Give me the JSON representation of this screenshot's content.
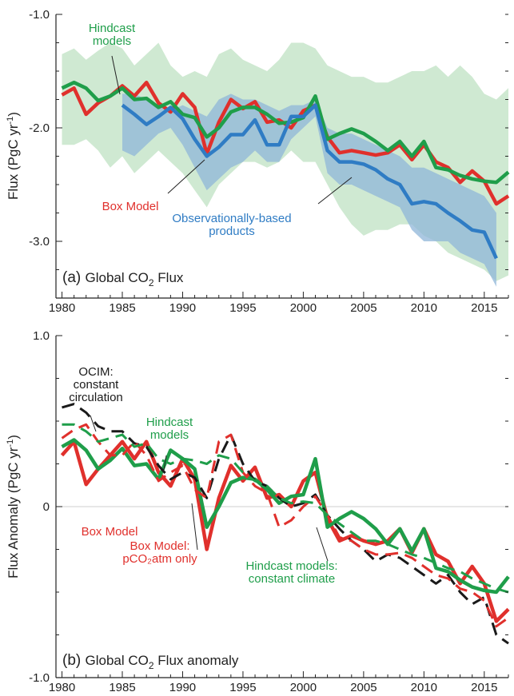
{
  "colors": {
    "red": "#e0302c",
    "green": "#1f9e4a",
    "blue": "#2f7cc4",
    "black": "#1a1a1a",
    "green_band": "#cfe9d2",
    "blue_band": "#8fb6d8",
    "annotation_green": "#1f9e4a",
    "annotation_red": "#e0302c",
    "annotation_blue": "#2f7cc4"
  },
  "chart_data": [
    {
      "type": "line",
      "panel_label": "(a)",
      "title": "Global CO₂ Flux",
      "title_parts": {
        "pre": "Global CO",
        "sub": "2",
        "post": " Flux"
      },
      "ylabel": "Flux (PgC yr⁻¹)",
      "ylabel_parts": {
        "pre": "Flux (PgC yr",
        "sup": "-1",
        "post": ")"
      },
      "xlim": [
        1979.5,
        2017
      ],
      "ylim": [
        -1.0,
        -3.5
      ],
      "x_ticks": [
        1980,
        1985,
        1990,
        1995,
        2000,
        2005,
        2010,
        2015
      ],
      "y_ticks": [
        -1.0,
        -2.0,
        -3.0
      ],
      "y_tick_labels": [
        "-1.0",
        "-2.0",
        "-3.0"
      ],
      "grid": false,
      "annotations": [
        {
          "id": "hindcast",
          "lines": [
            "Hindcast",
            "models"
          ],
          "color": "green"
        },
        {
          "id": "boxmodel",
          "lines": [
            "Box Model"
          ],
          "color": "red"
        },
        {
          "id": "obs",
          "lines": [
            "Observationally-based",
            "products"
          ],
          "color": "blue"
        }
      ],
      "bands": [
        {
          "name": "Hindcast models range",
          "color": "green_band",
          "x": [
            1980,
            1981,
            1982,
            1983,
            1984,
            1985,
            1986,
            1987,
            1988,
            1989,
            1990,
            1991,
            1992,
            1993,
            1994,
            1995,
            1996,
            1997,
            1998,
            1999,
            2000,
            2001,
            2002,
            2003,
            2004,
            2005,
            2006,
            2007,
            2008,
            2009,
            2010,
            2011,
            2012,
            2013,
            2014,
            2015,
            2016,
            2017
          ],
          "upper": [
            -1.35,
            -1.3,
            -1.4,
            -1.32,
            -1.25,
            -1.3,
            -1.45,
            -1.35,
            -1.25,
            -1.45,
            -1.55,
            -1.5,
            -1.55,
            -1.35,
            -1.3,
            -1.4,
            -1.45,
            -1.5,
            -1.4,
            -1.25,
            -1.25,
            -1.3,
            -1.45,
            -1.5,
            -1.55,
            -1.55,
            -1.6,
            -1.6,
            -1.55,
            -1.5,
            -1.5,
            -1.45,
            -1.55,
            -1.45,
            -1.55,
            -1.7,
            -1.75,
            -1.65
          ],
          "lower": [
            -2.15,
            -2.15,
            -2.1,
            -2.2,
            -2.35,
            -2.25,
            -2.4,
            -2.3,
            -2.2,
            -2.3,
            -2.4,
            -2.55,
            -2.7,
            -2.5,
            -2.4,
            -2.3,
            -2.3,
            -2.35,
            -2.3,
            -2.2,
            -2.3,
            -2.3,
            -2.5,
            -2.7,
            -2.85,
            -2.95,
            -2.9,
            -2.9,
            -2.85,
            -2.85,
            -2.95,
            -3.0,
            -3.1,
            -3.15,
            -3.2,
            -3.25,
            -3.35,
            -3.3
          ]
        },
        {
          "name": "Observationally-based products range",
          "color": "blue_band",
          "x": [
            1985,
            1986,
            1987,
            1988,
            1989,
            1990,
            1991,
            1992,
            1993,
            1994,
            1995,
            1996,
            1997,
            1998,
            1999,
            2000,
            2001,
            2002,
            2003,
            2004,
            2005,
            2006,
            2007,
            2008,
            2009,
            2010,
            2011,
            2012,
            2013,
            2014,
            2015,
            2016
          ],
          "upper": [
            -1.7,
            -1.7,
            -1.75,
            -1.8,
            -1.85,
            -1.8,
            -1.85,
            -1.9,
            -1.75,
            -1.7,
            -1.75,
            -1.75,
            -1.8,
            -1.85,
            -1.8,
            -1.8,
            -1.75,
            -2.0,
            -2.05,
            -2.05,
            -2.1,
            -2.15,
            -2.2,
            -2.25,
            -2.35,
            -2.35,
            -2.4,
            -2.45,
            -2.5,
            -2.55,
            -2.6,
            -2.75
          ],
          "lower": [
            -2.2,
            -2.25,
            -2.15,
            -2.05,
            -2.0,
            -2.15,
            -2.35,
            -2.55,
            -2.45,
            -2.35,
            -2.3,
            -2.2,
            -2.3,
            -2.3,
            -2.1,
            -2.0,
            -1.9,
            -2.4,
            -2.5,
            -2.5,
            -2.55,
            -2.6,
            -2.65,
            -2.7,
            -2.9,
            -3.0,
            -3.0,
            -3.0,
            -3.1,
            -3.15,
            -3.2,
            -3.4
          ]
        }
      ],
      "series": [
        {
          "name": "Box Model",
          "color": "red",
          "dash": false,
          "x": [
            1980,
            1981,
            1982,
            1983,
            1984,
            1985,
            1986,
            1987,
            1988,
            1989,
            1990,
            1991,
            1992,
            1993,
            1994,
            1995,
            1996,
            1997,
            1998,
            1999,
            2000,
            2001,
            2002,
            2003,
            2004,
            2005,
            2006,
            2007,
            2008,
            2009,
            2010,
            2011,
            2012,
            2013,
            2014,
            2015,
            2016,
            2017
          ],
          "values": [
            -1.71,
            -1.65,
            -1.88,
            -1.78,
            -1.72,
            -1.63,
            -1.72,
            -1.6,
            -1.78,
            -1.86,
            -1.7,
            -1.82,
            -2.23,
            -1.95,
            -1.75,
            -1.83,
            -1.77,
            -1.95,
            -1.93,
            -2.0,
            -1.85,
            -1.8,
            -2.08,
            -2.22,
            -2.2,
            -2.22,
            -2.24,
            -2.22,
            -2.15,
            -2.28,
            -2.15,
            -2.3,
            -2.35,
            -2.48,
            -2.38,
            -2.47,
            -2.67,
            -2.6
          ]
        },
        {
          "name": "Hindcast models",
          "color": "green",
          "dash": false,
          "x": [
            1980,
            1981,
            1982,
            1983,
            1984,
            1985,
            1986,
            1987,
            1988,
            1989,
            1990,
            1991,
            1992,
            1993,
            1994,
            1995,
            1996,
            1997,
            1998,
            1999,
            2000,
            2001,
            2002,
            2003,
            2004,
            2005,
            2006,
            2007,
            2008,
            2009,
            2010,
            2011,
            2012,
            2013,
            2014,
            2015,
            2016,
            2017
          ],
          "values": [
            -1.65,
            -1.6,
            -1.65,
            -1.76,
            -1.72,
            -1.65,
            -1.75,
            -1.74,
            -1.82,
            -1.77,
            -1.88,
            -1.91,
            -2.08,
            -2.0,
            -1.86,
            -1.82,
            -1.82,
            -1.88,
            -1.96,
            -1.95,
            -1.91,
            -1.72,
            -2.1,
            -2.05,
            -2.01,
            -2.05,
            -2.12,
            -2.2,
            -2.12,
            -2.25,
            -2.12,
            -2.35,
            -2.37,
            -2.42,
            -2.45,
            -2.47,
            -2.48,
            -2.39
          ]
        },
        {
          "name": "Observationally-based products",
          "color": "blue",
          "dash": false,
          "x": [
            1985,
            1986,
            1987,
            1988,
            1989,
            1990,
            1991,
            1992,
            1993,
            1994,
            1995,
            1996,
            1997,
            1998,
            1999,
            2000,
            2001,
            2002,
            2003,
            2004,
            2005,
            2006,
            2007,
            2008,
            2009,
            2010,
            2011,
            2012,
            2013,
            2014,
            2015,
            2016
          ],
          "values": [
            -1.8,
            -1.88,
            -1.97,
            -1.9,
            -1.82,
            -1.92,
            -2.1,
            -2.25,
            -2.17,
            -2.06,
            -2.06,
            -1.93,
            -2.15,
            -2.15,
            -1.9,
            -1.9,
            -1.8,
            -2.2,
            -2.3,
            -2.3,
            -2.32,
            -2.37,
            -2.45,
            -2.5,
            -2.67,
            -2.65,
            -2.67,
            -2.75,
            -2.82,
            -2.9,
            -2.92,
            -3.15
          ]
        }
      ]
    },
    {
      "type": "line",
      "panel_label": "(b)",
      "title": "Global CO₂ Flux anomaly",
      "title_parts": {
        "pre": "Global CO",
        "sub": "2",
        "post": " Flux anomaly"
      },
      "ylabel": "Flux Anomaly (PgC yr⁻¹)",
      "ylabel_parts": {
        "pre": "Flux Anomaly (PgC yr",
        "sup": "-1",
        "post": ")"
      },
      "xlim": [
        1979.5,
        2017
      ],
      "ylim": [
        1.0,
        -1.0
      ],
      "x_ticks": [
        1980,
        1985,
        1990,
        1995,
        2000,
        2005,
        2010,
        2015
      ],
      "y_ticks": [
        1.0,
        0,
        -1.0
      ],
      "y_tick_labels": [
        "1.0",
        "0",
        "-1.0"
      ],
      "grid": false,
      "zero_line": true,
      "annotations": [
        {
          "id": "ocim",
          "lines": [
            "OCIM:",
            "constant",
            "circulation"
          ],
          "color": "black"
        },
        {
          "id": "hindcast",
          "lines": [
            "Hindcast",
            "models"
          ],
          "color": "green"
        },
        {
          "id": "boxmodel",
          "lines": [
            "Box Model"
          ],
          "color": "red"
        },
        {
          "id": "boxpco2",
          "lines": [
            "Box Model:",
            "pCO₂atm only"
          ],
          "color": "red"
        },
        {
          "id": "hindconst",
          "lines": [
            "Hindcast models:",
            "constant climate"
          ],
          "color": "green"
        }
      ],
      "series": [
        {
          "name": "Box Model",
          "color": "red",
          "dash": false,
          "x": [
            1980,
            1981,
            1982,
            1983,
            1984,
            1985,
            1986,
            1987,
            1988,
            1989,
            1990,
            1991,
            1992,
            1993,
            1994,
            1995,
            1996,
            1997,
            1998,
            1999,
            2000,
            2001,
            2002,
            2003,
            2004,
            2005,
            2006,
            2007,
            2008,
            2009,
            2010,
            2011,
            2012,
            2013,
            2014,
            2015,
            2016,
            2017
          ],
          "values": [
            0.3,
            0.38,
            0.13,
            0.22,
            0.3,
            0.38,
            0.28,
            0.38,
            0.2,
            0.12,
            0.28,
            0.16,
            -0.25,
            0.05,
            0.24,
            0.15,
            0.23,
            0.05,
            0.07,
            0.0,
            0.15,
            0.2,
            -0.07,
            -0.2,
            -0.17,
            -0.2,
            -0.22,
            -0.2,
            -0.13,
            -0.27,
            -0.13,
            -0.28,
            -0.32,
            -0.45,
            -0.35,
            -0.45,
            -0.67,
            -0.6
          ]
        },
        {
          "name": "Hindcast models",
          "color": "green",
          "dash": false,
          "x": [
            1980,
            1981,
            1982,
            1983,
            1984,
            1985,
            1986,
            1987,
            1988,
            1989,
            1990,
            1991,
            1992,
            1993,
            1994,
            1995,
            1996,
            1997,
            1998,
            1999,
            2000,
            2001,
            2002,
            2003,
            2004,
            2005,
            2006,
            2007,
            2008,
            2009,
            2010,
            2011,
            2012,
            2013,
            2014,
            2015,
            2016,
            2017
          ],
          "values": [
            0.35,
            0.39,
            0.33,
            0.22,
            0.27,
            0.34,
            0.24,
            0.25,
            0.16,
            0.33,
            0.28,
            0.22,
            -0.12,
            0.0,
            0.14,
            0.17,
            0.16,
            0.1,
            0.02,
            0.06,
            0.07,
            0.28,
            -0.12,
            -0.07,
            -0.03,
            -0.07,
            -0.13,
            -0.22,
            -0.13,
            -0.26,
            -0.13,
            -0.36,
            -0.38,
            -0.43,
            -0.47,
            -0.49,
            -0.5,
            -0.41
          ]
        },
        {
          "name": "OCIM: constant circulation",
          "color": "black",
          "dash": true,
          "x": [
            1980,
            1981,
            1982,
            1983,
            1984,
            1985,
            1986,
            1987,
            1988,
            1989,
            1990,
            1991,
            1992,
            1993,
            1994,
            1995,
            1996,
            1997,
            1998,
            1999,
            2000,
            2001,
            2002,
            2003,
            2004,
            2005,
            2006,
            2007,
            2008,
            2009,
            2010,
            2011,
            2012,
            2013,
            2014,
            2015,
            2016,
            2017
          ],
          "values": [
            0.58,
            0.6,
            0.55,
            0.47,
            0.44,
            0.44,
            0.37,
            0.35,
            0.24,
            0.16,
            0.2,
            0.17,
            0.05,
            0.28,
            0.42,
            0.25,
            0.15,
            0.12,
            0.05,
            0.0,
            0.02,
            0.07,
            -0.05,
            -0.13,
            -0.2,
            -0.25,
            -0.32,
            -0.28,
            -0.3,
            -0.35,
            -0.4,
            -0.45,
            -0.4,
            -0.5,
            -0.57,
            -0.53,
            -0.75,
            -0.8
          ]
        },
        {
          "name": "Box Model: pCO₂atm only",
          "color": "red",
          "dash": true,
          "x": [
            1980,
            1981,
            1982,
            1983,
            1984,
            1985,
            1986,
            1987,
            1988,
            1989,
            1990,
            1991,
            1992,
            1993,
            1994,
            1995,
            1996,
            1997,
            1998,
            1999,
            2000,
            2001,
            2002,
            2003,
            2004,
            2005,
            2006,
            2007,
            2008,
            2009,
            2010,
            2011,
            2012,
            2013,
            2014,
            2015,
            2016,
            2017
          ],
          "values": [
            0.4,
            0.45,
            0.48,
            0.38,
            0.3,
            0.3,
            0.38,
            0.3,
            0.15,
            0.2,
            0.24,
            0.1,
            0.05,
            0.38,
            0.42,
            0.2,
            0.12,
            0.08,
            -0.12,
            -0.08,
            0.0,
            0.06,
            -0.05,
            -0.18,
            -0.2,
            -0.25,
            -0.28,
            -0.28,
            -0.27,
            -0.3,
            -0.35,
            -0.4,
            -0.42,
            -0.48,
            -0.5,
            -0.55,
            -0.7,
            -0.65
          ]
        },
        {
          "name": "Hindcast models: constant climate",
          "color": "green",
          "dash": true,
          "x": [
            1980,
            1981,
            1982,
            1983,
            1984,
            1985,
            1986,
            1987,
            1988,
            1989,
            1990,
            1991,
            1992,
            1993,
            1994,
            1995,
            1996,
            1997,
            1998,
            1999,
            2000,
            2001,
            2002,
            2003,
            2004,
            2005,
            2006,
            2007,
            2008,
            2009,
            2010,
            2011,
            2012,
            2013,
            2014,
            2015,
            2016,
            2017
          ],
          "values": [
            0.48,
            0.48,
            0.44,
            0.38,
            0.4,
            0.42,
            0.35,
            0.37,
            0.28,
            0.25,
            0.28,
            0.27,
            0.25,
            0.3,
            0.28,
            0.2,
            0.15,
            0.12,
            0.05,
            0.02,
            0.03,
            0.02,
            -0.05,
            -0.1,
            -0.15,
            -0.2,
            -0.2,
            -0.22,
            -0.25,
            -0.28,
            -0.3,
            -0.33,
            -0.36,
            -0.38,
            -0.42,
            -0.45,
            -0.48,
            -0.5
          ]
        }
      ]
    }
  ]
}
